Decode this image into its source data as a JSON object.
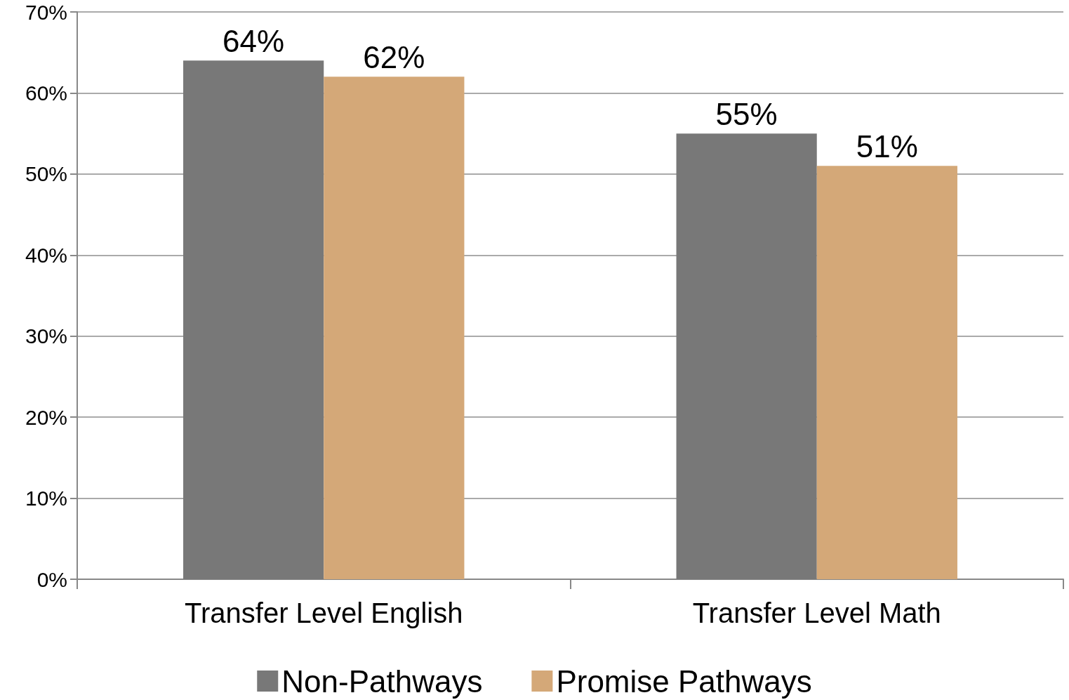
{
  "chart_data": {
    "type": "bar",
    "categories": [
      "Transfer Level English",
      "Transfer Level Math"
    ],
    "series": [
      {
        "name": "Non-Pathways",
        "color": "#787878",
        "values": [
          64,
          55
        ],
        "value_labels": [
          "64%",
          "55%"
        ]
      },
      {
        "name": "Promise Pathways",
        "color": "#d4a878",
        "values": [
          62,
          51
        ],
        "value_labels": [
          "62%",
          "51%"
        ]
      }
    ],
    "ylim": [
      0,
      70
    ],
    "yticks": [
      {
        "value": 0,
        "label": "0%"
      },
      {
        "value": 10,
        "label": "10%"
      },
      {
        "value": 20,
        "label": "20%"
      },
      {
        "value": 30,
        "label": "30%"
      },
      {
        "value": 40,
        "label": "40%"
      },
      {
        "value": 50,
        "label": "50%"
      },
      {
        "value": 60,
        "label": "60%"
      },
      {
        "value": 70,
        "label": "70%"
      }
    ],
    "grid": "y",
    "legend": "bottom"
  }
}
